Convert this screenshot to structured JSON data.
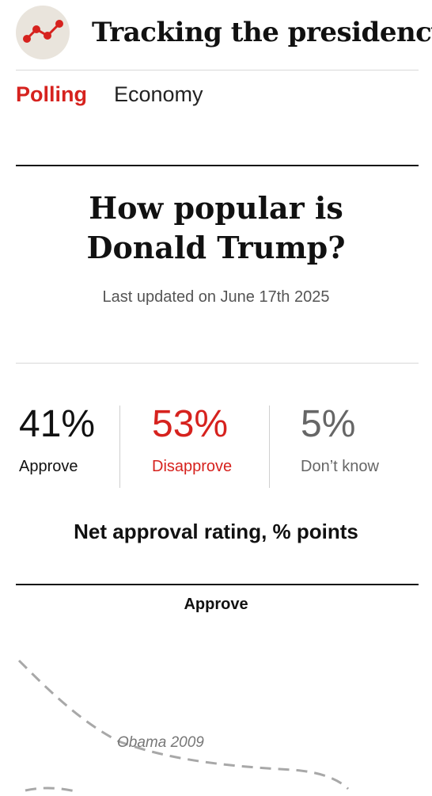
{
  "header": {
    "title": "Tracking the presidency",
    "logo_icon": "line-chart-icon",
    "logo_bg": "#e9e4dc",
    "logo_color": "#d6221e"
  },
  "nav": {
    "tabs": [
      {
        "label": "Polling",
        "active": true
      },
      {
        "label": "Economy",
        "active": false
      }
    ]
  },
  "main": {
    "headline_line1": "How popular is",
    "headline_line2": "Donald Trump?",
    "updated": "Last updated on June 17th 2025"
  },
  "stats": {
    "approve": {
      "value": "41%",
      "label": "Approve",
      "color": "#111111"
    },
    "disapprove": {
      "value": "53%",
      "label": "Disapprove",
      "color": "#d6221e"
    },
    "dont_know": {
      "value": "5%",
      "label": "Don’t know",
      "color": "#666666"
    }
  },
  "net_approval": {
    "title": "Net approval rating, % points",
    "chart_label": "Approve",
    "annotation": "Obama 2009"
  }
}
